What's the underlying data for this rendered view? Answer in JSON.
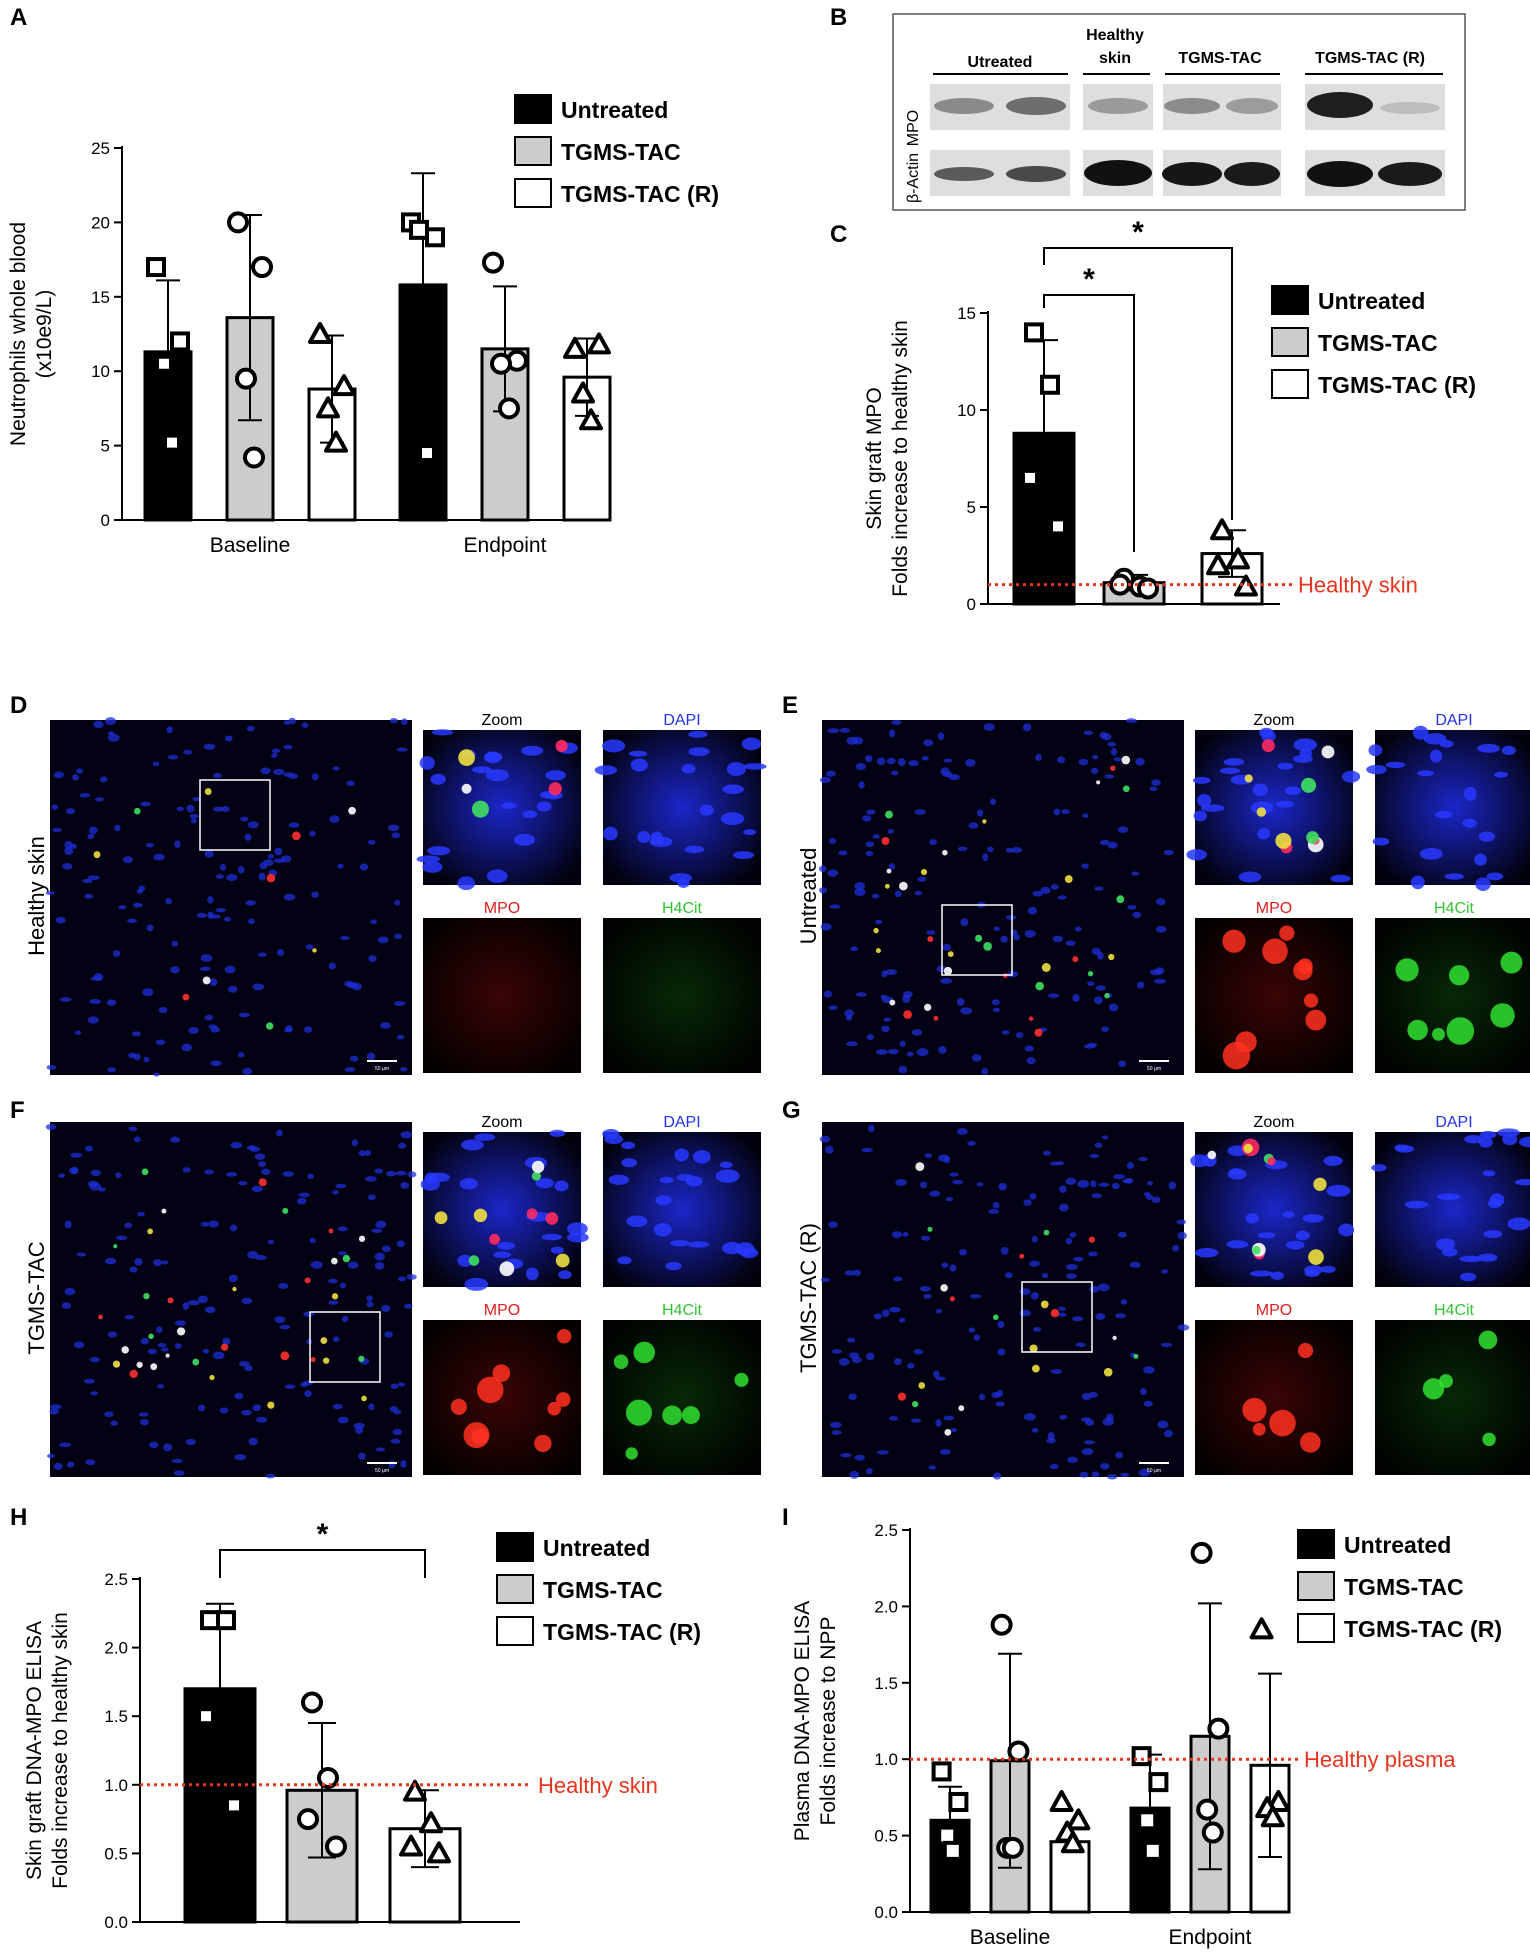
{
  "colors": {
    "untreated": "#000000",
    "tgms_tac": "#cccccc",
    "tgms_tac_r": "#ffffff",
    "reference_line": "#e8341c",
    "dapi": "#2233ee",
    "mpo": "#e02020",
    "h4cit": "#33c233"
  },
  "legend": [
    "Untreated",
    "TGMS-TAC",
    "TGMS-TAC (R)"
  ],
  "panels": {
    "A": "A",
    "B": "B",
    "C": "C",
    "D": "D",
    "E": "E",
    "F": "F",
    "G": "G",
    "H": "H",
    "I": "I"
  },
  "significance": "*",
  "western_blot": {
    "groups": [
      "Utreated",
      "Healthy\nskin",
      "TGMS-TAC",
      "TGMS-TAC (R)"
    ],
    "rows": [
      "MPO",
      "β-Actin"
    ]
  },
  "microscopy": {
    "channels": [
      "Zoom",
      "DAPI",
      "MPO",
      "H4Cit"
    ],
    "conditions": [
      "Healthy skin",
      "Untreated",
      "TGMS-TAC",
      "TGMS-TAC (R)"
    ],
    "scale_bar": "50 µm"
  },
  "chart_data": [
    {
      "id": "A",
      "type": "bar",
      "ylabel": [
        "Neutrophils whole blood",
        "(x10e9/L)"
      ],
      "categories": [
        "Baseline",
        "Endpoint"
      ],
      "ylim": [
        0,
        25
      ],
      "yticks": [
        0,
        5,
        10,
        15,
        20,
        25
      ],
      "series": [
        {
          "name": "Untreated",
          "values": [
            11.3,
            15.8
          ],
          "sd": [
            4.8,
            7.5
          ],
          "points": [
            [
              17.0,
              12.0,
              10.5,
              5.2
            ],
            [
              20.0,
              19.0,
              19.5,
              4.5
            ]
          ],
          "marker": "square"
        },
        {
          "name": "TGMS-TAC",
          "values": [
            13.6,
            11.5
          ],
          "sd": [
            6.9,
            4.2
          ],
          "points": [
            [
              20.0,
              17.0,
              9.5,
              4.2
            ],
            [
              17.3,
              10.7,
              10.5,
              7.5
            ]
          ],
          "marker": "circle"
        },
        {
          "name": "TGMS-TAC (R)",
          "values": [
            8.8,
            9.6
          ],
          "sd": [
            3.6,
            2.6
          ],
          "points": [
            [
              12.5,
              9.0,
              7.5,
              5.2
            ],
            [
              11.5,
              11.8,
              8.5,
              6.7
            ]
          ],
          "marker": "triangle"
        }
      ]
    },
    {
      "id": "C",
      "type": "bar",
      "ylabel": [
        "Skin graft MPO",
        "Folds increase to healthy skin"
      ],
      "categories": [
        "Untreated",
        "TGMS-TAC",
        "TGMS-TAC (R)"
      ],
      "ylim": [
        0,
        15
      ],
      "yticks": [
        0,
        5,
        10,
        15
      ],
      "values": [
        8.8,
        1.1,
        2.6
      ],
      "sd": [
        4.8,
        0.4,
        1.2
      ],
      "points": [
        [
          14.0,
          11.3,
          6.5,
          4.0
        ],
        [
          1.3,
          0.9,
          1.0,
          0.8
        ],
        [
          3.8,
          2.3,
          2.0,
          0.9
        ]
      ],
      "markers": [
        "square",
        "circle",
        "triangle"
      ],
      "reference_line": {
        "value": 1.0,
        "label": "Healthy skin"
      },
      "comparisons": [
        [
          0,
          1,
          "*"
        ],
        [
          0,
          2,
          "*"
        ]
      ]
    },
    {
      "id": "H",
      "type": "bar",
      "ylabel": [
        "Skin graft DNA-MPO ELISA",
        "Folds increase to healthy skin"
      ],
      "categories": [
        "Untreated",
        "TGMS-TAC",
        "TGMS-TAC (R)"
      ],
      "ylim": [
        0,
        2.5
      ],
      "yticks": [
        "0.0",
        "0.5",
        "1.0",
        "1.5",
        "2.0",
        "2.5"
      ],
      "values": [
        1.7,
        0.96,
        0.68
      ],
      "sd": [
        0.62,
        0.49,
        0.28
      ],
      "points": [
        [
          2.2,
          2.2,
          1.5,
          0.85
        ],
        [
          1.6,
          1.05,
          0.75,
          0.55
        ],
        [
          0.95,
          0.72,
          0.55,
          0.5
        ]
      ],
      "markers": [
        "square",
        "circle",
        "triangle"
      ],
      "reference_line": {
        "value": 1.0,
        "label": "Healthy skin"
      },
      "comparisons": [
        [
          0,
          2,
          "*"
        ]
      ]
    },
    {
      "id": "I",
      "type": "bar",
      "ylabel": [
        "Plasma DNA-MPO ELISA",
        "Folds increase to NPP"
      ],
      "categories": [
        "Baseline",
        "Endpoint"
      ],
      "ylim": [
        0,
        2.5
      ],
      "yticks": [
        "0.0",
        "0.5",
        "1.0",
        "1.5",
        "2.0",
        "2.5"
      ],
      "series": [
        {
          "name": "Untreated",
          "values": [
            0.6,
            0.68
          ],
          "sd": [
            0.22,
            0.35
          ],
          "points": [
            [
              0.92,
              0.72,
              0.5,
              0.4
            ],
            [
              1.02,
              0.85,
              0.6,
              0.4
            ]
          ],
          "marker": "square"
        },
        {
          "name": "TGMS-TAC",
          "values": [
            0.99,
            1.15
          ],
          "sd": [
            0.7,
            0.87
          ],
          "points": [
            [
              1.88,
              1.05,
              0.42,
              0.42
            ],
            [
              2.35,
              1.2,
              0.67,
              0.52
            ]
          ],
          "marker": "circle"
        },
        {
          "name": "TGMS-TAC (R)",
          "values": [
            0.46,
            0.96
          ],
          "sd": [
            0.0,
            0.6
          ],
          "points": [
            [
              0.72,
              0.6,
              0.52,
              0.45
            ],
            [
              1.85,
              0.72,
              0.68,
              0.62
            ]
          ],
          "marker": "triangle"
        }
      ],
      "reference_line": {
        "value": 1.0,
        "label": "Healthy plasma"
      }
    }
  ]
}
